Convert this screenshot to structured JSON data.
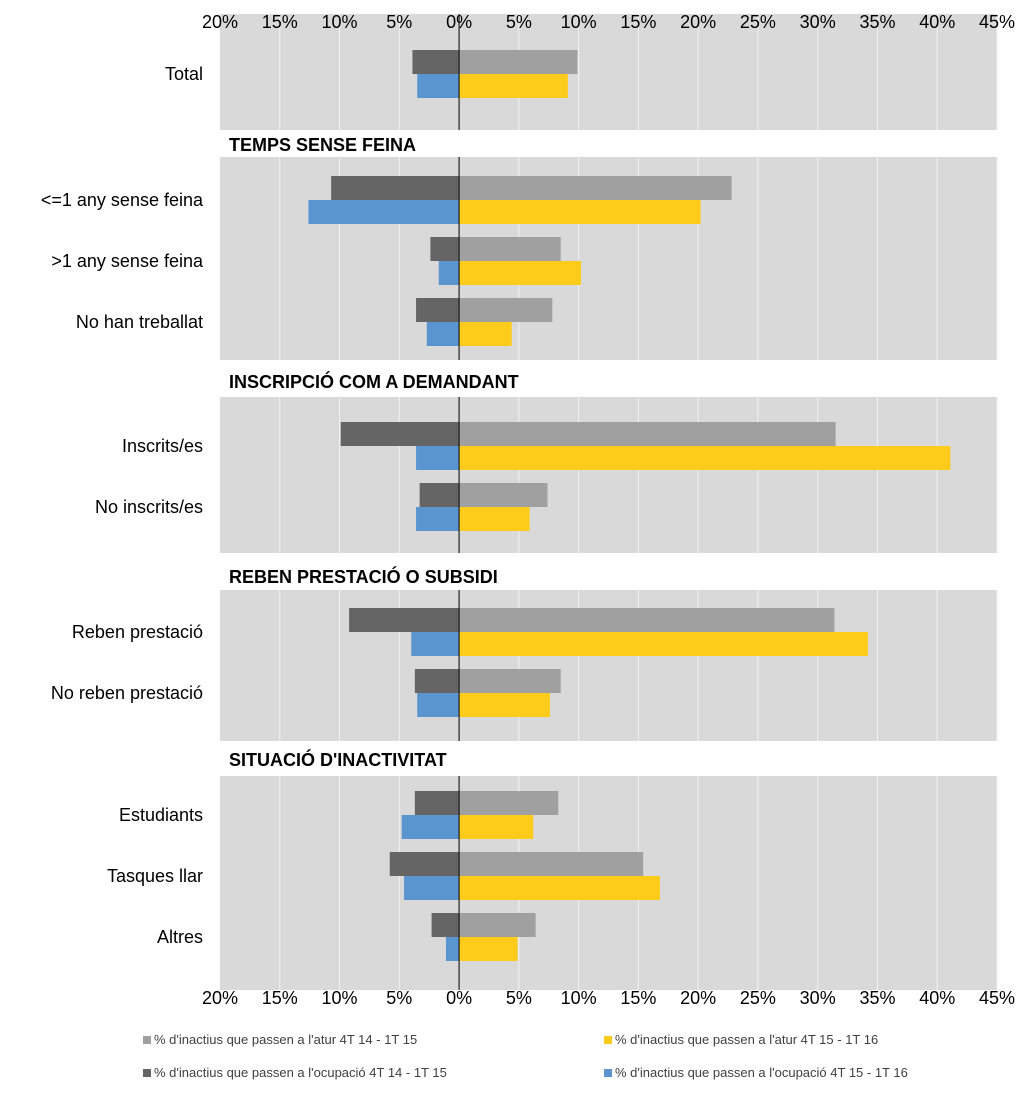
{
  "chart_data": {
    "type": "bar",
    "orientation": "horizontal",
    "axis": {
      "min": -20,
      "max": 45,
      "step": 5,
      "tick_labels": [
        "20%",
        "15%",
        "10%",
        "5%",
        "0%",
        "5%",
        "10%",
        "15%",
        "20%",
        "25%",
        "30%",
        "35%",
        "40%",
        "45%"
      ],
      "position": "top-and-bottom",
      "grid": true
    },
    "series": [
      {
        "name": "% d'inactius que passen a l'atur 4T 14 - 1T 15",
        "color": "#a0a0a0",
        "side": "positive"
      },
      {
        "name": "% d'inactius que passen a l'atur 4T 15 - 1T 16",
        "color": "#fdcb1a",
        "side": "positive"
      },
      {
        "name": "% d'inactius que passen a l'ocupació 4T 14 - 1T 15",
        "color": "#656565",
        "side": "negative"
      },
      {
        "name": "% d'inactius que passen a l'ocupació 4T 15 - 1T 16",
        "color": "#5a95cf",
        "side": "negative"
      }
    ],
    "groups": [
      {
        "heading": "",
        "categories": [
          {
            "label": "Total",
            "values": [
              9.9,
              9.1,
              -3.9,
              -3.5
            ]
          }
        ]
      },
      {
        "heading": "TEMPS SENSE FEINA",
        "categories": [
          {
            "label": "<=1 any sense feina",
            "values": [
              22.8,
              20.2,
              -10.7,
              -12.6
            ]
          },
          {
            "label": ">1 any sense feina",
            "values": [
              8.5,
              10.2,
              -2.4,
              -1.7
            ]
          },
          {
            "label": "No han treballat",
            "values": [
              7.8,
              4.4,
              -3.6,
              -2.7
            ]
          }
        ]
      },
      {
        "heading": "INSCRIPCIÓ COM A DEMANDANT",
        "categories": [
          {
            "label": "Inscrits/es",
            "values": [
              31.5,
              41.1,
              -9.9,
              -3.6
            ]
          },
          {
            "label": "No inscrits/es",
            "values": [
              7.4,
              5.9,
              -3.3,
              -3.6
            ]
          }
        ]
      },
      {
        "heading": "REBEN PRESTACIÓ O SUBSIDI",
        "categories": [
          {
            "label": "Reben prestació",
            "values": [
              31.4,
              34.2,
              -9.2,
              -4.0
            ]
          },
          {
            "label": "No reben prestació",
            "values": [
              8.5,
              7.6,
              -3.7,
              -3.5
            ]
          }
        ]
      },
      {
        "heading": "SITUACIÓ D'INACTIVITAT",
        "categories": [
          {
            "label": "Estudiants",
            "values": [
              8.3,
              6.2,
              -3.7,
              -4.8
            ]
          },
          {
            "label": "Tasques llar",
            "values": [
              15.4,
              16.8,
              -5.8,
              -4.6
            ]
          },
          {
            "label": "Altres",
            "values": [
              6.4,
              4.9,
              -2.3,
              -1.1
            ]
          }
        ]
      }
    ]
  }
}
